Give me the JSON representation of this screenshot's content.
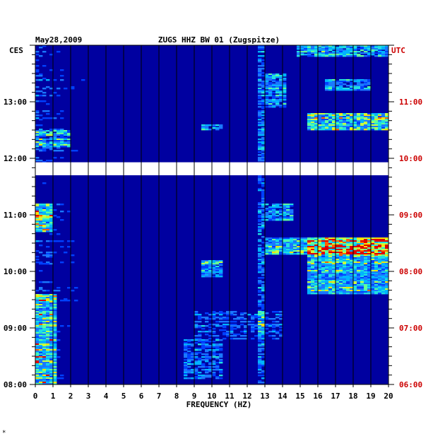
{
  "chart_data": {
    "type": "heatmap",
    "title": "ZUGS HHZ BW 01 (Zugspitze)",
    "date": "May28,2009",
    "xlabel": "FREQUENCY (HZ)",
    "xlim": [
      0,
      20
    ],
    "x_ticks": [
      "0",
      "1",
      "2",
      "3",
      "4",
      "5",
      "6",
      "7",
      "8",
      "9",
      "10",
      "11",
      "12",
      "13",
      "14",
      "15",
      "16",
      "17",
      "18",
      "19",
      "20"
    ],
    "left_axis_label": "CES",
    "right_axis_label": "UTC",
    "left_time_labels": [
      "08:00",
      "09:00",
      "10:00",
      "11:00",
      "12:00",
      "13:00"
    ],
    "right_time_labels": [
      "06:00",
      "07:00",
      "08:00",
      "09:00",
      "10:00",
      "11:00"
    ],
    "utc_hour_range": [
      6,
      12
    ],
    "data_gap_utc_hours": [
      9.7,
      9.93
    ],
    "colors": {
      "background": "#0000a0",
      "right_axis": "#cc0000",
      "gap": "#ffffff"
    },
    "footnote": "*"
  }
}
